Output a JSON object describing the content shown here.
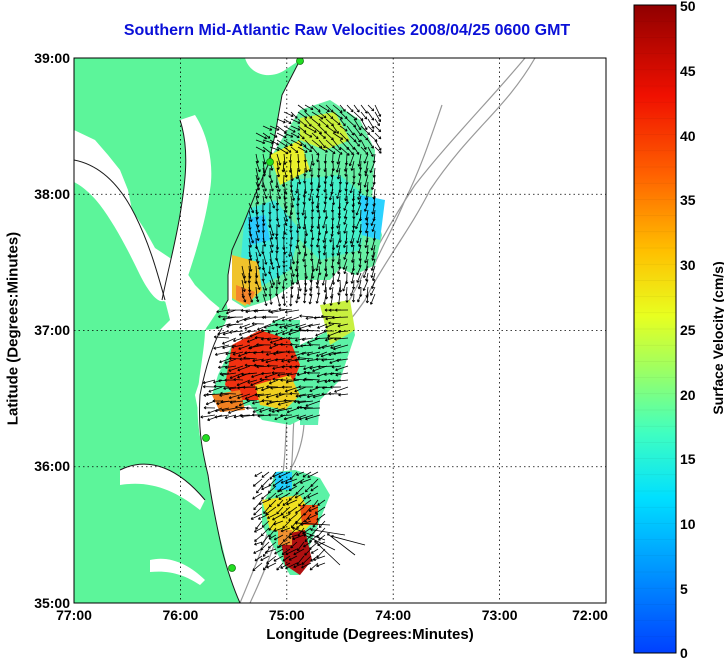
{
  "title": "Southern Mid-Atlantic Raw Velocities 2008/04/25 0600 GMT",
  "xlabel": "Longitude (Degrees:Minutes)",
  "ylabel": "Latitude (Degrees:Minutes)",
  "colorbar_label": "Surface Velocity (cm/s)",
  "x_ticks": [
    "77:00",
    "76:00",
    "75:00",
    "74:00",
    "73:00",
    "72:00"
  ],
  "y_ticks": [
    "39:00",
    "38:00",
    "37:00",
    "36:00",
    "35:00"
  ],
  "colorbar_ticks": [
    "50",
    "45",
    "40",
    "35",
    "30",
    "25",
    "20",
    "15",
    "10",
    "5",
    "0"
  ],
  "colors": {
    "land": "#5cf59a",
    "coast": "#1a1a1a",
    "bathymetry": "#999999",
    "title": "#0a10d8",
    "station": "#22dd22"
  },
  "map_extent": {
    "lon": [
      -77,
      -72
    ],
    "lat": [
      35,
      39
    ]
  },
  "colorbar_range": [
    0,
    50
  ]
}
